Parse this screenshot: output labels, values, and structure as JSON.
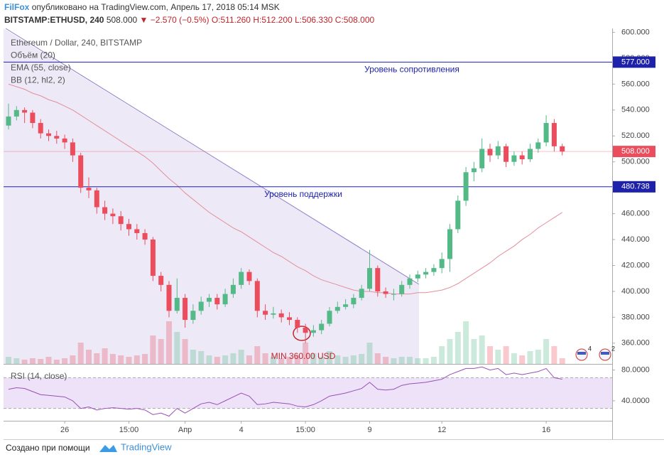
{
  "header": {
    "author": "FilFox",
    "published": "опубликовано на TradingView.com, Апрель 17, 2018 05:14 MSK",
    "symbol": "BITSTAMP:ETHUSD, 240",
    "price": "508.000",
    "change": "▼ −2.570 (−0.5%)",
    "open": "O:511.260",
    "high": "H:512.200",
    "low": "L:506.330",
    "close": "C:508.000"
  },
  "chart_data": {
    "type": "candlestick",
    "legend": [
      "Ethereum / Dollar, 240, BITSTAMP",
      "Объём (20)",
      "EMA (55, close)",
      "BB (12, hl2, 2)"
    ],
    "up_color": "#53b987",
    "down_color": "#eb4d5c",
    "ylim": [
      344,
      603
    ],
    "yticks": [
      {
        "value": 360,
        "label": "360.000"
      },
      {
        "value": 380,
        "label": "380.000"
      },
      {
        "value": 400,
        "label": "400.000"
      },
      {
        "value": 420,
        "label": "420.000"
      },
      {
        "value": 440,
        "label": "440.000"
      },
      {
        "value": 460,
        "label": "460.000"
      },
      {
        "value": 480,
        "label": "480.000"
      },
      {
        "value": 500,
        "label": "500.000"
      },
      {
        "value": 520,
        "label": "520.000"
      },
      {
        "value": 540,
        "label": "540.000"
      },
      {
        "value": 560,
        "label": "560.000"
      },
      {
        "value": 580,
        "label": "580.000"
      },
      {
        "value": 600,
        "label": "600.000"
      }
    ],
    "xticks": [
      {
        "value": 7,
        "label": "26"
      },
      {
        "value": 15,
        "label": "15:00"
      },
      {
        "value": 22,
        "label": "Апр"
      },
      {
        "value": 29,
        "label": "4"
      },
      {
        "value": 37,
        "label": "15:00"
      },
      {
        "value": 45,
        "label": "9"
      },
      {
        "value": 54,
        "label": "12"
      },
      {
        "value": 67,
        "label": "16"
      }
    ],
    "candles": [
      [
        528,
        545,
        525,
        535
      ],
      [
        535,
        543,
        532,
        540
      ],
      [
        540,
        542,
        530,
        538
      ],
      [
        538,
        540,
        526,
        530
      ],
      [
        530,
        533,
        518,
        522
      ],
      [
        522,
        525,
        516,
        520
      ],
      [
        520,
        524,
        514,
        518
      ],
      [
        518,
        521,
        510,
        515
      ],
      [
        515,
        518,
        500,
        505
      ],
      [
        505,
        507,
        476,
        480
      ],
      [
        480,
        488,
        472,
        478
      ],
      [
        478,
        480,
        460,
        465
      ],
      [
        465,
        470,
        455,
        460
      ],
      [
        460,
        464,
        452,
        458
      ],
      [
        458,
        462,
        447,
        452
      ],
      [
        452,
        456,
        443,
        448
      ],
      [
        448,
        452,
        440,
        445
      ],
      [
        445,
        448,
        436,
        440
      ],
      [
        440,
        442,
        408,
        412
      ],
      [
        412,
        415,
        400,
        405
      ],
      [
        405,
        408,
        380,
        385
      ],
      [
        385,
        410,
        383,
        395
      ],
      [
        395,
        398,
        372,
        378
      ],
      [
        378,
        390,
        375,
        385
      ],
      [
        385,
        396,
        382,
        392
      ],
      [
        392,
        398,
        388,
        395
      ],
      [
        395,
        398,
        386,
        390
      ],
      [
        390,
        402,
        388,
        398
      ],
      [
        398,
        410,
        395,
        405
      ],
      [
        405,
        418,
        402,
        415
      ],
      [
        415,
        417,
        405,
        408
      ],
      [
        408,
        410,
        380,
        385
      ],
      [
        385,
        390,
        378,
        382
      ],
      [
        382,
        388,
        379,
        383
      ],
      [
        383,
        386,
        376,
        380
      ],
      [
        380,
        384,
        374,
        378
      ],
      [
        378,
        380,
        368,
        372
      ],
      [
        372,
        375,
        360,
        368
      ],
      [
        368,
        374,
        365,
        370
      ],
      [
        370,
        378,
        367,
        375
      ],
      [
        375,
        388,
        373,
        385
      ],
      [
        385,
        392,
        383,
        388
      ],
      [
        388,
        394,
        386,
        390
      ],
      [
        390,
        398,
        387,
        395
      ],
      [
        395,
        405,
        393,
        402
      ],
      [
        402,
        432,
        400,
        418
      ],
      [
        418,
        420,
        396,
        400
      ],
      [
        400,
        403,
        395,
        398
      ],
      [
        398,
        402,
        393,
        398
      ],
      [
        398,
        408,
        396,
        405
      ],
      [
        405,
        413,
        402,
        410
      ],
      [
        410,
        416,
        407,
        413
      ],
      [
        413,
        418,
        410,
        415
      ],
      [
        415,
        421,
        412,
        418
      ],
      [
        418,
        430,
        414,
        425
      ],
      [
        425,
        452,
        415,
        448
      ],
      [
        448,
        474,
        445,
        470
      ],
      [
        470,
        496,
        466,
        492
      ],
      [
        492,
        500,
        485,
        495
      ],
      [
        495,
        518,
        492,
        510
      ],
      [
        510,
        514,
        500,
        505
      ],
      [
        505,
        516,
        502,
        512
      ],
      [
        512,
        514,
        496,
        500
      ],
      [
        500,
        508,
        497,
        505
      ],
      [
        505,
        508,
        498,
        502
      ],
      [
        502,
        514,
        500,
        510
      ],
      [
        510,
        518,
        507,
        515
      ],
      [
        515,
        536,
        512,
        530
      ],
      [
        530,
        533,
        508,
        512
      ],
      [
        512,
        514,
        505,
        508
      ]
    ],
    "volume_lim": [
      0,
      100
    ],
    "volume": [
      10,
      8,
      6,
      8,
      7,
      10,
      6,
      8,
      12,
      30,
      20,
      15,
      22,
      14,
      12,
      10,
      12,
      14,
      40,
      35,
      60,
      45,
      35,
      20,
      18,
      12,
      10,
      12,
      15,
      20,
      12,
      25,
      15,
      10,
      8,
      10,
      12,
      30,
      15,
      10,
      18,
      12,
      10,
      12,
      14,
      30,
      15,
      10,
      8,
      10,
      10,
      8,
      8,
      10,
      25,
      35,
      45,
      60,
      35,
      40,
      25,
      20,
      25,
      15,
      12,
      18,
      20,
      35,
      25,
      8
    ],
    "ema_color": "#e38f9c",
    "ema": [
      560,
      558,
      556,
      553,
      551,
      548,
      546,
      543,
      540,
      536,
      532,
      528,
      524,
      520,
      516,
      512,
      508,
      504,
      499,
      493,
      487,
      482,
      476,
      471,
      466,
      461,
      457,
      453,
      449,
      446,
      442,
      438,
      434,
      430,
      427,
      423,
      419,
      416,
      412,
      409,
      407,
      405,
      403,
      401,
      400,
      400,
      399,
      399,
      398,
      398,
      398,
      399,
      399,
      400,
      401,
      403,
      406,
      410,
      414,
      418,
      422,
      427,
      431,
      435,
      440,
      444,
      449,
      453,
      457,
      461
    ],
    "levels": [
      {
        "value": 577,
        "label": "577.000",
        "text": "Уровень сопротивления",
        "color": "#1e22aa"
      },
      {
        "value": 480.738,
        "label": "480.738",
        "text": "Уровень поддержки",
        "color": "#1e22aa"
      }
    ],
    "last_price": {
      "value": 508,
      "label": "508.000",
      "color": "#eb4d5c"
    },
    "min_note": {
      "value": 360,
      "text": "MIN 360.00 USD",
      "color": "#c0262c"
    },
    "badges": [
      "4",
      "2"
    ],
    "rsi": {
      "title": "RSI (14, close)",
      "color": "#9a4fb8",
      "ylim": [
        14,
        87
      ],
      "bands": [
        30,
        70
      ],
      "yticks": [
        {
          "value": 40,
          "label": "40.0000"
        },
        {
          "value": 80,
          "label": "80.0000"
        }
      ],
      "values": [
        55,
        57,
        56,
        52,
        48,
        47,
        46,
        45,
        40,
        30,
        32,
        28,
        30,
        31,
        30,
        29,
        30,
        28,
        22,
        24,
        20,
        30,
        24,
        30,
        36,
        38,
        35,
        40,
        45,
        50,
        46,
        35,
        36,
        38,
        37,
        36,
        33,
        32,
        35,
        40,
        46,
        48,
        50,
        53,
        56,
        64,
        55,
        54,
        55,
        60,
        62,
        63,
        64,
        66,
        68,
        74,
        78,
        82,
        82,
        84,
        80,
        82,
        74,
        76,
        74,
        76,
        78,
        82,
        70,
        68
      ]
    }
  },
  "footer": {
    "made_with": "Создано при помощи",
    "brand": "TradingView"
  }
}
